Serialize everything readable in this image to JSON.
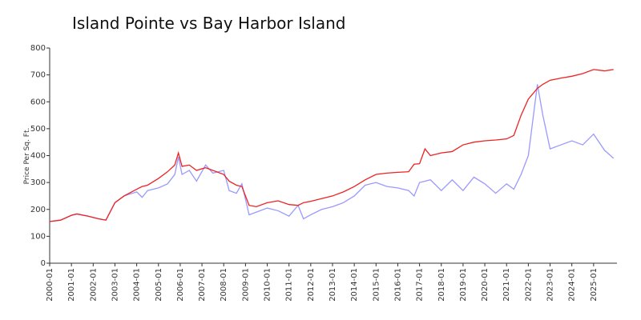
{
  "chart_data": {
    "type": "line",
    "title": "Island Pointe vs Bay Harbor Island",
    "y_label": "Price Per Sq. Ft.",
    "x": [
      "2000-01",
      "2000-07",
      "2001-01",
      "2001-04",
      "2001-10",
      "2002-04",
      "2002-08",
      "2003-01",
      "2003-06",
      "2004-01",
      "2004-04",
      "2004-07",
      "2005-01",
      "2005-06",
      "2005-10",
      "2005-12",
      "2006-02",
      "2006-06",
      "2006-10",
      "2007-03",
      "2007-07",
      "2008-01",
      "2008-04",
      "2008-08",
      "2008-11",
      "2009-03",
      "2009-07",
      "2010-01",
      "2010-07",
      "2011-01",
      "2011-06",
      "2011-09",
      "2012-01",
      "2012-07",
      "2013-01",
      "2013-07",
      "2014-01",
      "2014-07",
      "2015-01",
      "2015-07",
      "2016-01",
      "2016-07",
      "2016-10",
      "2017-01",
      "2017-04",
      "2017-07",
      "2018-01",
      "2018-07",
      "2019-01",
      "2019-07",
      "2020-01",
      "2020-07",
      "2021-01",
      "2021-05",
      "2021-09",
      "2022-01",
      "2022-06",
      "2022-09",
      "2023-01",
      "2023-07",
      "2024-01",
      "2024-07",
      "2025-01",
      "2025-07",
      "2025-12"
    ],
    "series": [
      {
        "color": "#9999ff",
        "values": [
          155,
          160,
          178,
          183,
          175,
          165,
          160,
          225,
          250,
          265,
          245,
          270,
          280,
          295,
          330,
          395,
          330,
          345,
          305,
          365,
          335,
          345,
          270,
          260,
          295,
          180,
          190,
          205,
          195,
          175,
          215,
          165,
          180,
          200,
          210,
          225,
          250,
          290,
          300,
          285,
          280,
          270,
          250,
          300,
          305,
          310,
          270,
          310,
          270,
          320,
          295,
          260,
          295,
          275,
          330,
          400,
          665,
          550,
          425,
          440,
          455,
          440,
          480,
          420,
          390
        ]
      },
      {
        "color": "#ee2222",
        "values": [
          155,
          160,
          178,
          183,
          175,
          165,
          160,
          225,
          250,
          275,
          285,
          290,
          315,
          340,
          365,
          410,
          360,
          365,
          345,
          355,
          345,
          330,
          305,
          290,
          285,
          215,
          210,
          225,
          232,
          218,
          215,
          225,
          230,
          240,
          250,
          265,
          285,
          310,
          330,
          335,
          338,
          340,
          368,
          370,
          425,
          400,
          410,
          415,
          440,
          450,
          455,
          458,
          462,
          475,
          550,
          610,
          650,
          665,
          680,
          688,
          695,
          705,
          720,
          715,
          720
        ]
      }
    ],
    "xlim": [
      "2000-01",
      "2026-01"
    ],
    "xticks": [
      "2000-01",
      "2001-01",
      "2002-01",
      "2003-01",
      "2004-01",
      "2005-01",
      "2006-01",
      "2007-01",
      "2008-01",
      "2009-01",
      "2010-01",
      "2011-01",
      "2012-01",
      "2013-01",
      "2014-01",
      "2015-01",
      "2016-01",
      "2017-01",
      "2018-01",
      "2019-01",
      "2020-01",
      "2021-01",
      "2022-01",
      "2023-01",
      "2024-01",
      "2025-01"
    ],
    "ylim": [
      0,
      800
    ],
    "yticks": [
      0,
      100,
      200,
      300,
      400,
      500,
      600,
      700,
      800
    ],
    "grid": false
  }
}
